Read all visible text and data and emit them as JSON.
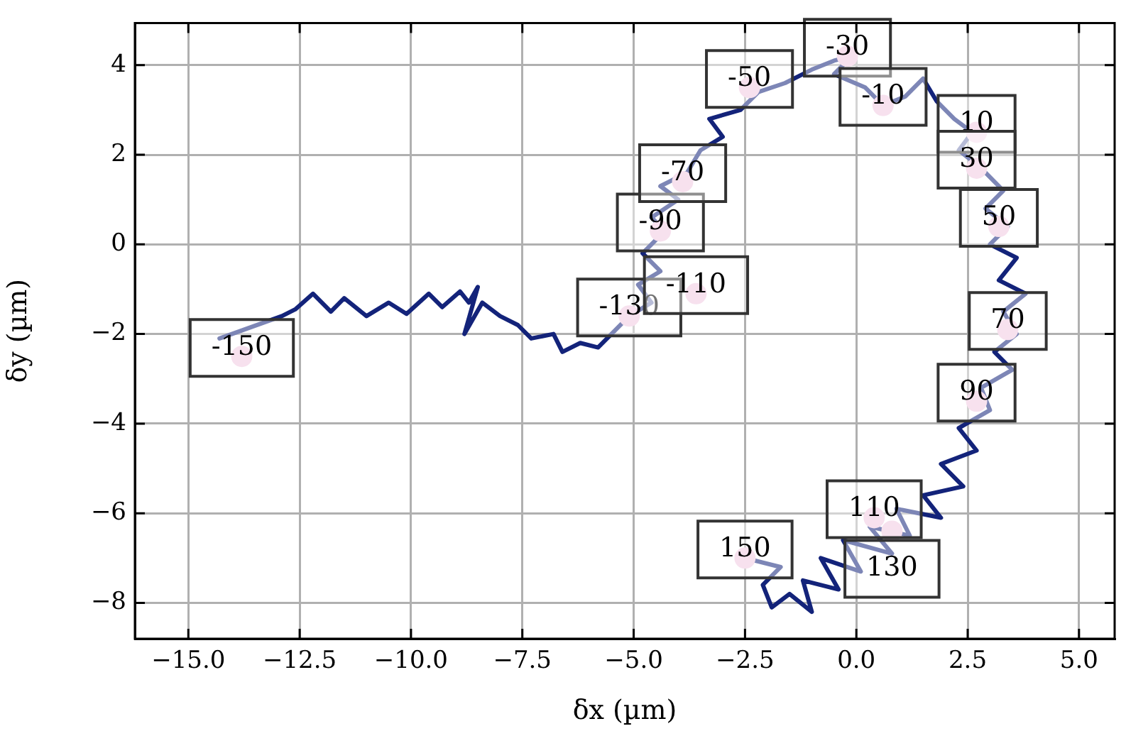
{
  "chart_data": {
    "type": "line",
    "xlabel": "δx (µm)",
    "ylabel": "δy (µm)",
    "xlim": [
      -16.2,
      5.8
    ],
    "ylim": [
      -8.8,
      4.94
    ],
    "xticks": [
      {
        "value": -15,
        "label": "−15.0"
      },
      {
        "value": -12.5,
        "label": "−12.5"
      },
      {
        "value": -10,
        "label": "−10.0"
      },
      {
        "value": -7.5,
        "label": "−7.5"
      },
      {
        "value": -5,
        "label": "−5.0"
      },
      {
        "value": -2.5,
        "label": "−2.5"
      },
      {
        "value": 0,
        "label": "0.0"
      },
      {
        "value": 2.5,
        "label": "2.5"
      },
      {
        "value": 5,
        "label": "5.0"
      }
    ],
    "yticks": [
      {
        "value": -8,
        "label": "−8"
      },
      {
        "value": -6,
        "label": "−6"
      },
      {
        "value": -4,
        "label": "−4"
      },
      {
        "value": -2,
        "label": "−2"
      },
      0,
      2,
      4
    ],
    "grid": true,
    "line_style": "solid",
    "legend": false,
    "series": [
      {
        "type": "line",
        "color": "#13237a",
        "x": [
          -14.3,
          -13.6,
          -12.9,
          -12.6,
          -12.2,
          -11.8,
          -11.5,
          -11.0,
          -10.5,
          -10.1,
          -9.6,
          -9.3,
          -8.9,
          -8.7,
          -8.5,
          -8.8,
          -8.4,
          -8.0,
          -7.6,
          -7.3,
          -6.8,
          -6.6,
          -6.2,
          -5.8,
          -5.4,
          -5.1,
          -4.6,
          -4.9,
          -4.4,
          -4.8,
          -4.3,
          -4.6,
          -4.0,
          -4.4,
          -3.8,
          -3.5,
          -3.0,
          -3.3,
          -2.6,
          -2.2,
          -1.6,
          -1.0,
          -0.5,
          -0.1,
          -0.5,
          0.2,
          0.6,
          1.1,
          1.5,
          1.8,
          2.2,
          2.6,
          2.3,
          2.8,
          3.3,
          2.9,
          3.4,
          3.0,
          3.6,
          3.2,
          3.8,
          3.3,
          3.6,
          3.1,
          3.5,
          2.8,
          3.0,
          2.3,
          2.7,
          1.9,
          2.4,
          1.5,
          1.9,
          0.9,
          1.2,
          0.3,
          0.8,
          -0.3,
          0.1,
          -0.8,
          -0.4,
          -1.2,
          -1.0,
          -1.5,
          -1.9,
          -2.1,
          -1.7,
          -2.5
        ],
        "values": [
          -2.1,
          -1.85,
          -1.6,
          -1.45,
          -1.1,
          -1.5,
          -1.2,
          -1.6,
          -1.3,
          -1.55,
          -1.1,
          -1.4,
          -1.05,
          -1.3,
          -0.95,
          -2.0,
          -1.3,
          -1.6,
          -1.8,
          -2.1,
          -2.0,
          -2.4,
          -2.2,
          -2.3,
          -1.9,
          -1.6,
          -1.3,
          -0.9,
          -0.6,
          -0.2,
          0.3,
          0.6,
          1.0,
          1.3,
          1.6,
          2.1,
          2.4,
          2.8,
          3.0,
          3.4,
          3.6,
          3.9,
          4.1,
          4.2,
          3.8,
          3.5,
          3.1,
          3.3,
          3.7,
          3.2,
          2.8,
          2.5,
          2.1,
          1.7,
          1.2,
          0.8,
          0.4,
          0.0,
          -0.3,
          -0.8,
          -1.1,
          -1.5,
          -2.0,
          -2.4,
          -2.8,
          -3.2,
          -3.7,
          -4.1,
          -4.6,
          -4.9,
          -5.4,
          -5.6,
          -6.1,
          -5.9,
          -6.5,
          -6.3,
          -6.9,
          -6.6,
          -7.3,
          -7.0,
          -7.7,
          -7.5,
          -8.2,
          -7.8,
          -8.1,
          -7.6,
          -7.2,
          -7.0
        ]
      },
      {
        "type": "scatter",
        "color": "#f0c8e0",
        "x": [
          -13.8,
          -5.1,
          -3.6,
          -4.4,
          -3.9,
          -2.4,
          -0.2,
          0.6,
          2.7,
          2.7,
          3.2,
          3.4,
          2.7,
          0.4,
          0.8,
          -2.5
        ],
        "values": [
          -2.5,
          -1.6,
          -1.1,
          0.3,
          1.4,
          3.5,
          4.2,
          3.1,
          2.5,
          1.7,
          0.4,
          -1.9,
          -3.5,
          -6.1,
          -6.4,
          -7.0
        ]
      }
    ],
    "annotations": [
      {
        "text": "-150",
        "x": -13.8,
        "y": -2.5
      },
      {
        "text": "-130",
        "x": -5.1,
        "y": -1.6
      },
      {
        "text": "-110",
        "x": -3.6,
        "y": -1.1
      },
      {
        "text": "-90",
        "x": -4.4,
        "y": 0.3
      },
      {
        "text": "-70",
        "x": -3.9,
        "y": 1.4
      },
      {
        "text": "-50",
        "x": -2.4,
        "y": 3.5
      },
      {
        "text": "-30",
        "x": -0.2,
        "y": 4.2
      },
      {
        "text": "-10",
        "x": 0.6,
        "y": 3.1
      },
      {
        "text": "10",
        "x": 2.7,
        "y": 2.5
      },
      {
        "text": "30",
        "x": 2.7,
        "y": 1.7
      },
      {
        "text": "50",
        "x": 3.2,
        "y": 0.4
      },
      {
        "text": "70",
        "x": 3.4,
        "y": -1.9
      },
      {
        "text": "90",
        "x": 2.7,
        "y": -3.5
      },
      {
        "text": "110",
        "x": 0.4,
        "y": -6.1
      },
      {
        "text": "130",
        "x": 0.8,
        "y": -6.4
      },
      {
        "text": "150",
        "x": -2.5,
        "y": -7.0
      }
    ]
  }
}
